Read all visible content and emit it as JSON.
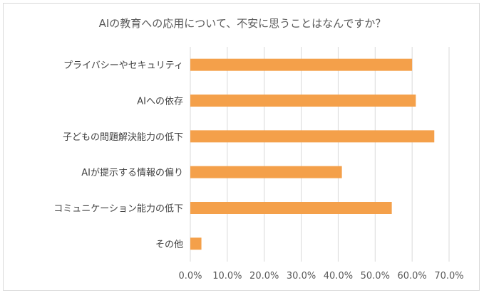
{
  "chart_data": {
    "type": "bar",
    "orientation": "horizontal",
    "title": "AIの教育への応用について、不安に思うことはなんですか？",
    "categories": [
      "プライバシーやセキュリティ",
      "AIへの依存",
      "子どもの問題解決能力の低下",
      "AIが提示する情報の偏り",
      "コミュニケーション能力の低下",
      "その他"
    ],
    "values": [
      60.0,
      61.0,
      66.0,
      41.0,
      54.5,
      3.0
    ],
    "xlim": [
      0,
      70
    ],
    "xticks": [
      "0.0%",
      "10.0%",
      "20.0%",
      "30.0%",
      "40.0%",
      "50.0%",
      "60.0%",
      "70.0%"
    ],
    "grid": true,
    "bar_color": "#F4A04A",
    "grid_color": "#d9d9d9"
  }
}
